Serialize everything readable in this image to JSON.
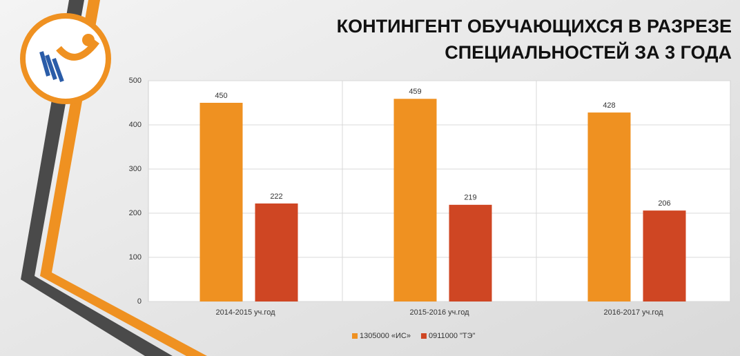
{
  "chart_data": {
    "type": "bar",
    "title": [
      "КОНТИНГЕНТ ОБУЧАЮЩИХСЯ В  РАЗРЕЗЕ",
      "СПЕЦИАЛЬНОСТЕЙ ЗА 3 ГОДА"
    ],
    "categories": [
      "2014-2015  уч.год",
      "2015-2016  уч.год",
      "2016-2017  уч.год"
    ],
    "series": [
      {
        "name": "1305000  «ИС»",
        "color": "#ef9121",
        "values": [
          450,
          459,
          428
        ]
      },
      {
        "name": "0911000  \"ТЭ\"",
        "color": "#cf4623",
        "values": [
          222,
          219,
          206
        ]
      }
    ],
    "ylim": [
      0,
      500
    ],
    "yticks": [
      0,
      100,
      200,
      300,
      400,
      500
    ],
    "grid": true,
    "legend": "bottom"
  }
}
